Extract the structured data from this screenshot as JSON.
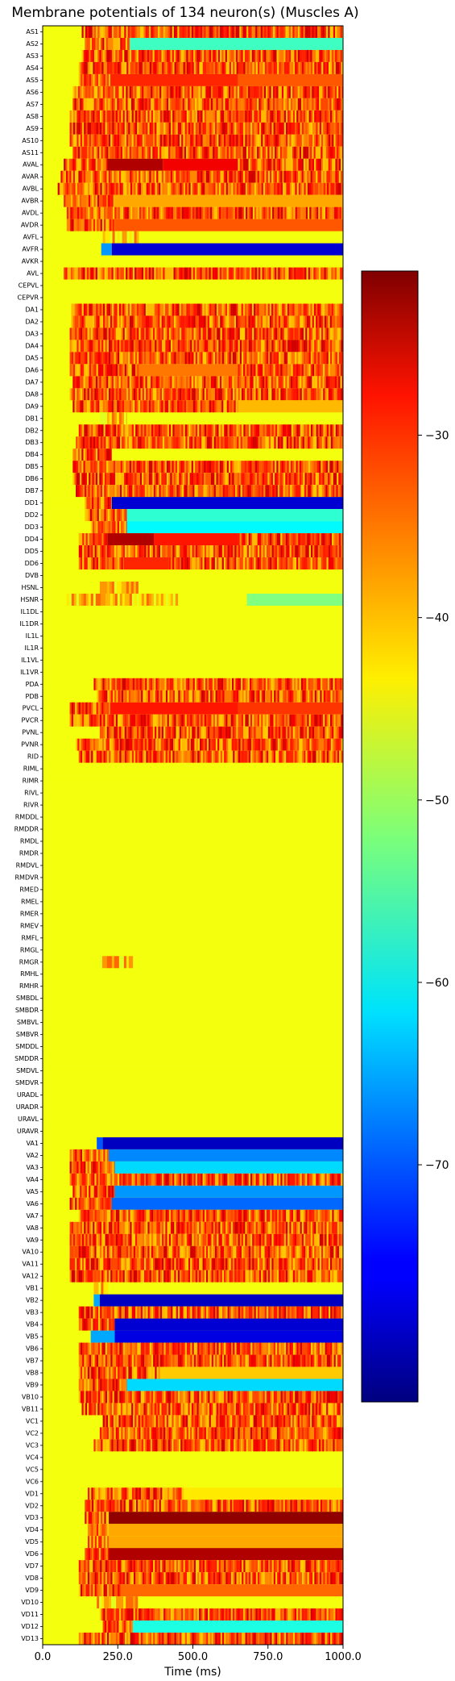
{
  "chart_data": {
    "type": "heatmap",
    "title": "Membrane potentials of 134 neuron(s) (Muscles A)",
    "xlabel": "Time (ms)",
    "ylabel": "",
    "xlim": [
      0,
      1000
    ],
    "x_ticks": [
      "0.0",
      "250.0",
      "500.0",
      "750.0",
      "1000.0"
    ],
    "x_tick_values": [
      0,
      250,
      500,
      750,
      1000
    ],
    "colormap": "jet",
    "color_range": [
      -83,
      -21
    ],
    "colorbar_ticks": [
      "−30",
      "−40",
      "−50",
      "−60",
      "−70"
    ],
    "colorbar_tick_values": [
      -30,
      -40,
      -50,
      -60,
      -70
    ],
    "baseline_mV": -45,
    "neurons": [
      "AS1",
      "AS2",
      "AS3",
      "AS4",
      "AS5",
      "AS6",
      "AS7",
      "AS8",
      "AS9",
      "AS10",
      "AS11",
      "AVAL",
      "AVAR",
      "AVBL",
      "AVBR",
      "AVDL",
      "AVDR",
      "AVFL",
      "AVFR",
      "AVKR",
      "AVL",
      "CEPVL",
      "CEPVR",
      "DA1",
      "DA2",
      "DA3",
      "DA4",
      "DA5",
      "DA6",
      "DA7",
      "DA8",
      "DA9",
      "DB1",
      "DB2",
      "DB3",
      "DB4",
      "DB5",
      "DB6",
      "DB7",
      "DD1",
      "DD2",
      "DD3",
      "DD4",
      "DD5",
      "DD6",
      "DVB",
      "HSNL",
      "HSNR",
      "IL1DL",
      "IL1DR",
      "IL1L",
      "IL1R",
      "IL1VL",
      "IL1VR",
      "PDA",
      "PDB",
      "PVCL",
      "PVCR",
      "PVNL",
      "PVNR",
      "RID",
      "RIML",
      "RIMR",
      "RIVL",
      "RIVR",
      "RMDDL",
      "RMDDR",
      "RMDL",
      "RMDR",
      "RMDVL",
      "RMDVR",
      "RMED",
      "RMEL",
      "RMER",
      "RMEV",
      "RMFL",
      "RMGL",
      "RMGR",
      "RMHL",
      "RMHR",
      "SMBDL",
      "SMBDR",
      "SMBVL",
      "SMBVR",
      "SMDDL",
      "SMDDR",
      "SMDVL",
      "SMDVR",
      "URADL",
      "URADR",
      "URAVL",
      "URAVR",
      "VA1",
      "VA2",
      "VA3",
      "VA4",
      "VA5",
      "VA6",
      "VA7",
      "VA8",
      "VA9",
      "VA10",
      "VA11",
      "VA12",
      "VB1",
      "VB2",
      "VB3",
      "VB4",
      "VB5",
      "VB6",
      "VB7",
      "VB8",
      "VB9",
      "VB10",
      "VB11",
      "VC1",
      "VC2",
      "VC3",
      "VC4",
      "VC5",
      "VC6",
      "VD1",
      "VD2",
      "VD3",
      "VD4",
      "VD5",
      "VD6",
      "VD7",
      "VD8",
      "VD9",
      "VD10",
      "VD11",
      "VD12",
      "VD13"
    ],
    "rows": {
      "AS1": [
        {
          "start": 130,
          "end": 1000,
          "kind": "spike"
        }
      ],
      "AS2": [
        {
          "start": 140,
          "end": 290,
          "kind": "spike"
        },
        {
          "start": 290,
          "end": 1000,
          "kind": "tonic",
          "value": -56
        }
      ],
      "AS3": [
        {
          "start": 130,
          "end": 1000,
          "kind": "spike"
        }
      ],
      "AS4": [
        {
          "start": 120,
          "end": 1000,
          "kind": "spike"
        }
      ],
      "AS5": [
        {
          "start": 120,
          "end": 225,
          "kind": "spike"
        },
        {
          "start": 225,
          "end": 650,
          "kind": "tonic",
          "value": -31
        },
        {
          "start": 650,
          "end": 1000,
          "kind": "tonic",
          "value": -34
        }
      ],
      "AS6": [
        {
          "start": 100,
          "end": 1000,
          "kind": "spike"
        }
      ],
      "AS7": [
        {
          "start": 100,
          "end": 1000,
          "kind": "spike"
        }
      ],
      "AS8": [
        {
          "start": 90,
          "end": 1000,
          "kind": "spike"
        }
      ],
      "AS9": [
        {
          "start": 90,
          "end": 1000,
          "kind": "spike"
        }
      ],
      "AS10": [
        {
          "start": 90,
          "end": 1000,
          "kind": "spike"
        }
      ],
      "AS11": [
        {
          "start": 100,
          "end": 1000,
          "kind": "spike"
        }
      ],
      "AVAL": [
        {
          "start": 70,
          "end": 215,
          "kind": "spike"
        },
        {
          "start": 215,
          "end": 400,
          "kind": "tonic",
          "value": -24
        },
        {
          "start": 400,
          "end": 650,
          "kind": "tonic",
          "value": -28
        },
        {
          "start": 650,
          "end": 1000,
          "kind": "spike"
        }
      ],
      "AVAR": [
        {
          "start": 60,
          "end": 1000,
          "kind": "spike"
        }
      ],
      "AVBL": [
        {
          "start": 50,
          "end": 1000,
          "kind": "spike"
        }
      ],
      "AVBR": [
        {
          "start": 70,
          "end": 240,
          "kind": "spike"
        },
        {
          "start": 240,
          "end": 1000,
          "kind": "tonic",
          "value": -39
        }
      ],
      "AVDL": [
        {
          "start": 80,
          "end": 1000,
          "kind": "spike"
        }
      ],
      "AVDR": [
        {
          "start": 80,
          "end": 240,
          "kind": "spike"
        },
        {
          "start": 240,
          "end": 1000,
          "kind": "tonic",
          "value": -34
        }
      ],
      "AVFL": [
        {
          "start": 200,
          "end": 320,
          "kind": "burst"
        }
      ],
      "AVFR": [
        {
          "start": 195,
          "end": 230,
          "kind": "tonic",
          "value": -66
        },
        {
          "start": 230,
          "end": 1000,
          "kind": "tonic",
          "value": -78
        }
      ],
      "AVKR": [],
      "AVL": [
        {
          "start": 70,
          "end": 1000,
          "kind": "spike"
        }
      ],
      "CEPVL": [],
      "CEPVR": [],
      "DA1": [
        {
          "start": 95,
          "end": 1000,
          "kind": "spike"
        }
      ],
      "DA2": [
        {
          "start": 95,
          "end": 1000,
          "kind": "spike"
        }
      ],
      "DA3": [
        {
          "start": 90,
          "end": 1000,
          "kind": "spike"
        }
      ],
      "DA4": [
        {
          "start": 90,
          "end": 1000,
          "kind": "spike"
        }
      ],
      "DA5": [
        {
          "start": 90,
          "end": 1000,
          "kind": "spike"
        }
      ],
      "DA6": [
        {
          "start": 90,
          "end": 320,
          "kind": "spike"
        },
        {
          "start": 320,
          "end": 650,
          "kind": "tonic",
          "value": -36
        },
        {
          "start": 650,
          "end": 1000,
          "kind": "spike"
        }
      ],
      "DA7": [
        {
          "start": 100,
          "end": 1000,
          "kind": "spike"
        }
      ],
      "DA8": [
        {
          "start": 90,
          "end": 1000,
          "kind": "spike"
        }
      ],
      "DA9": [
        {
          "start": 100,
          "end": 650,
          "kind": "spike"
        },
        {
          "start": 650,
          "end": 1000,
          "kind": "tonic",
          "value": -40
        }
      ],
      "DB1": [
        {
          "start": 190,
          "end": 280,
          "kind": "burst"
        }
      ],
      "DB2": [
        {
          "start": 120,
          "end": 1000,
          "kind": "spike"
        }
      ],
      "DB3": [
        {
          "start": 110,
          "end": 1000,
          "kind": "spike"
        }
      ],
      "DB4": [
        {
          "start": 100,
          "end": 230,
          "kind": "spike"
        }
      ],
      "DB5": [
        {
          "start": 100,
          "end": 1000,
          "kind": "spike"
        }
      ],
      "DB6": [
        {
          "start": 100,
          "end": 1000,
          "kind": "spike"
        }
      ],
      "DB7": [
        {
          "start": 110,
          "end": 1000,
          "kind": "spike"
        }
      ],
      "DD1": [
        {
          "start": 140,
          "end": 230,
          "kind": "spike"
        },
        {
          "start": 230,
          "end": 1000,
          "kind": "tonic",
          "value": -78
        }
      ],
      "DD2": [
        {
          "start": 140,
          "end": 280,
          "kind": "spike"
        },
        {
          "start": 280,
          "end": 1000,
          "kind": "tonic",
          "value": -57
        }
      ],
      "DD3": [
        {
          "start": 160,
          "end": 280,
          "kind": "spike"
        },
        {
          "start": 280,
          "end": 1000,
          "kind": "tonic",
          "value": -60
        }
      ],
      "DD4": [
        {
          "start": 120,
          "end": 215,
          "kind": "spike"
        },
        {
          "start": 215,
          "end": 370,
          "kind": "tonic",
          "value": -24
        },
        {
          "start": 370,
          "end": 650,
          "kind": "tonic",
          "value": -30
        },
        {
          "start": 650,
          "end": 1000,
          "kind": "spike"
        }
      ],
      "DD5": [
        {
          "start": 120,
          "end": 1000,
          "kind": "spike"
        }
      ],
      "DD6": [
        {
          "start": 120,
          "end": 270,
          "kind": "spike"
        },
        {
          "start": 270,
          "end": 420,
          "kind": "tonic",
          "value": -31
        },
        {
          "start": 420,
          "end": 1000,
          "kind": "spike"
        }
      ],
      "DVB": [],
      "HSNL": [
        {
          "start": 190,
          "end": 320,
          "kind": "burst"
        }
      ],
      "HSNR": [
        {
          "start": 80,
          "end": 450,
          "kind": "burst"
        },
        {
          "start": 680,
          "end": 1000,
          "kind": "tonic",
          "value": -52
        }
      ],
      "IL1DL": [],
      "IL1DR": [],
      "IL1L": [],
      "IL1R": [],
      "IL1VL": [],
      "IL1VR": [],
      "PDA": [
        {
          "start": 170,
          "end": 1000,
          "kind": "spike"
        }
      ],
      "PDB": [
        {
          "start": 180,
          "end": 1000,
          "kind": "spike"
        }
      ],
      "PVCL": [
        {
          "start": 90,
          "end": 225,
          "kind": "spike"
        },
        {
          "start": 225,
          "end": 650,
          "kind": "tonic",
          "value": -30
        },
        {
          "start": 650,
          "end": 1000,
          "kind": "tonic",
          "value": -32
        }
      ],
      "PVCR": [
        {
          "start": 90,
          "end": 1000,
          "kind": "spike"
        }
      ],
      "PVNL": [
        {
          "start": 190,
          "end": 1000,
          "kind": "spike"
        }
      ],
      "PVNR": [
        {
          "start": 110,
          "end": 1000,
          "kind": "spike"
        }
      ],
      "RID": [
        {
          "start": 120,
          "end": 1000,
          "kind": "spike"
        }
      ],
      "RIML": [],
      "RIMR": [],
      "RIVL": [],
      "RIVR": [],
      "RMDDL": [],
      "RMDDR": [],
      "RMDL": [],
      "RMDR": [],
      "RMDVL": [],
      "RMDVR": [],
      "RMED": [],
      "RMEL": [],
      "RMER": [],
      "RMEV": [],
      "RMFL": [],
      "RMGL": [],
      "RMGR": [
        {
          "start": 190,
          "end": 300,
          "kind": "burst"
        }
      ],
      "RMHL": [],
      "RMHR": [],
      "SMBDL": [],
      "SMBDR": [],
      "SMBVL": [],
      "SMBVR": [],
      "SMDDL": [],
      "SMDDR": [],
      "SMDVL": [],
      "SMDVR": [],
      "URADL": [],
      "URADR": [],
      "URAVL": [],
      "URAVR": [],
      "VA1": [
        {
          "start": 180,
          "end": 200,
          "kind": "tonic",
          "value": -70
        },
        {
          "start": 200,
          "end": 1000,
          "kind": "tonic",
          "value": -79
        }
      ],
      "VA2": [
        {
          "start": 90,
          "end": 220,
          "kind": "spike"
        },
        {
          "start": 220,
          "end": 1000,
          "kind": "tonic",
          "value": -67
        }
      ],
      "VA3": [
        {
          "start": 90,
          "end": 240,
          "kind": "spike"
        },
        {
          "start": 240,
          "end": 1000,
          "kind": "tonic",
          "value": -62
        }
      ],
      "VA4": [
        {
          "start": 90,
          "end": 1000,
          "kind": "spike"
        }
      ],
      "VA5": [
        {
          "start": 100,
          "end": 240,
          "kind": "spike"
        },
        {
          "start": 240,
          "end": 1000,
          "kind": "tonic",
          "value": -66
        }
      ],
      "VA6": [
        {
          "start": 90,
          "end": 230,
          "kind": "spike"
        },
        {
          "start": 230,
          "end": 1000,
          "kind": "tonic",
          "value": -69
        }
      ],
      "VA7": [
        {
          "start": 120,
          "end": 1000,
          "kind": "spike"
        }
      ],
      "VA8": [
        {
          "start": 90,
          "end": 1000,
          "kind": "spike"
        }
      ],
      "VA9": [
        {
          "start": 90,
          "end": 1000,
          "kind": "spike"
        }
      ],
      "VA10": [
        {
          "start": 90,
          "end": 1000,
          "kind": "spike"
        }
      ],
      "VA11": [
        {
          "start": 90,
          "end": 1000,
          "kind": "spike"
        }
      ],
      "VA12": [
        {
          "start": 90,
          "end": 1000,
          "kind": "spike"
        }
      ],
      "VB1": [
        {
          "start": 170,
          "end": 220,
          "kind": "burst"
        }
      ],
      "VB2": [
        {
          "start": 170,
          "end": 190,
          "kind": "tonic",
          "value": -65
        },
        {
          "start": 190,
          "end": 1000,
          "kind": "tonic",
          "value": -79
        }
      ],
      "VB3": [
        {
          "start": 120,
          "end": 1000,
          "kind": "spike"
        }
      ],
      "VB4": [
        {
          "start": 120,
          "end": 240,
          "kind": "spike"
        },
        {
          "start": 240,
          "end": 1000,
          "kind": "tonic",
          "value": -78
        }
      ],
      "VB5": [
        {
          "start": 160,
          "end": 240,
          "kind": "tonic",
          "value": -65
        },
        {
          "start": 240,
          "end": 1000,
          "kind": "tonic",
          "value": -77
        }
      ],
      "VB6": [
        {
          "start": 120,
          "end": 1000,
          "kind": "spike"
        }
      ],
      "VB7": [
        {
          "start": 120,
          "end": 1000,
          "kind": "spike"
        }
      ],
      "VB8": [
        {
          "start": 120,
          "end": 390,
          "kind": "spike"
        },
        {
          "start": 390,
          "end": 1000,
          "kind": "tonic",
          "value": -41
        }
      ],
      "VB9": [
        {
          "start": 120,
          "end": 280,
          "kind": "spike"
        },
        {
          "start": 280,
          "end": 1000,
          "kind": "tonic",
          "value": -62
        }
      ],
      "VB10": [
        {
          "start": 120,
          "end": 1000,
          "kind": "spike"
        }
      ],
      "VB11": [
        {
          "start": 130,
          "end": 1000,
          "kind": "spike"
        }
      ],
      "VC1": [
        {
          "start": 200,
          "end": 1000,
          "kind": "spike"
        }
      ],
      "VC2": [
        {
          "start": 190,
          "end": 1000,
          "kind": "spike"
        }
      ],
      "VC3": [
        {
          "start": 170,
          "end": 1000,
          "kind": "spike"
        }
      ],
      "VC4": [],
      "VC5": [],
      "VC6": [],
      "VD1": [
        {
          "start": 150,
          "end": 470,
          "kind": "spike"
        },
        {
          "start": 470,
          "end": 1000,
          "kind": "tonic",
          "value": -43
        }
      ],
      "VD2": [
        {
          "start": 140,
          "end": 1000,
          "kind": "spike"
        }
      ],
      "VD3": [
        {
          "start": 140,
          "end": 220,
          "kind": "spike"
        },
        {
          "start": 220,
          "end": 1000,
          "kind": "tonic",
          "value": -22
        }
      ],
      "VD4": [
        {
          "start": 150,
          "end": 220,
          "kind": "spike"
        },
        {
          "start": 220,
          "end": 1000,
          "kind": "tonic",
          "value": -39
        }
      ],
      "VD5": [
        {
          "start": 150,
          "end": 220,
          "kind": "spike"
        },
        {
          "start": 220,
          "end": 1000,
          "kind": "tonic",
          "value": -39
        }
      ],
      "VD6": [
        {
          "start": 140,
          "end": 220,
          "kind": "spike"
        },
        {
          "start": 220,
          "end": 1000,
          "kind": "tonic",
          "value": -24
        }
      ],
      "VD7": [
        {
          "start": 120,
          "end": 1000,
          "kind": "spike"
        }
      ],
      "VD8": [
        {
          "start": 120,
          "end": 1000,
          "kind": "spike"
        }
      ],
      "VD9": [
        {
          "start": 120,
          "end": 260,
          "kind": "spike"
        },
        {
          "start": 260,
          "end": 1000,
          "kind": "tonic",
          "value": -35
        }
      ],
      "VD10": [
        {
          "start": 180,
          "end": 320,
          "kind": "burst"
        }
      ],
      "VD11": [
        {
          "start": 190,
          "end": 1000,
          "kind": "spike"
        }
      ],
      "VD12": [
        {
          "start": 200,
          "end": 300,
          "kind": "spike"
        },
        {
          "start": 300,
          "end": 1000,
          "kind": "tonic",
          "value": -58
        }
      ],
      "VD13": [
        {
          "start": 120,
          "end": 1000,
          "kind": "spike"
        }
      ]
    }
  }
}
